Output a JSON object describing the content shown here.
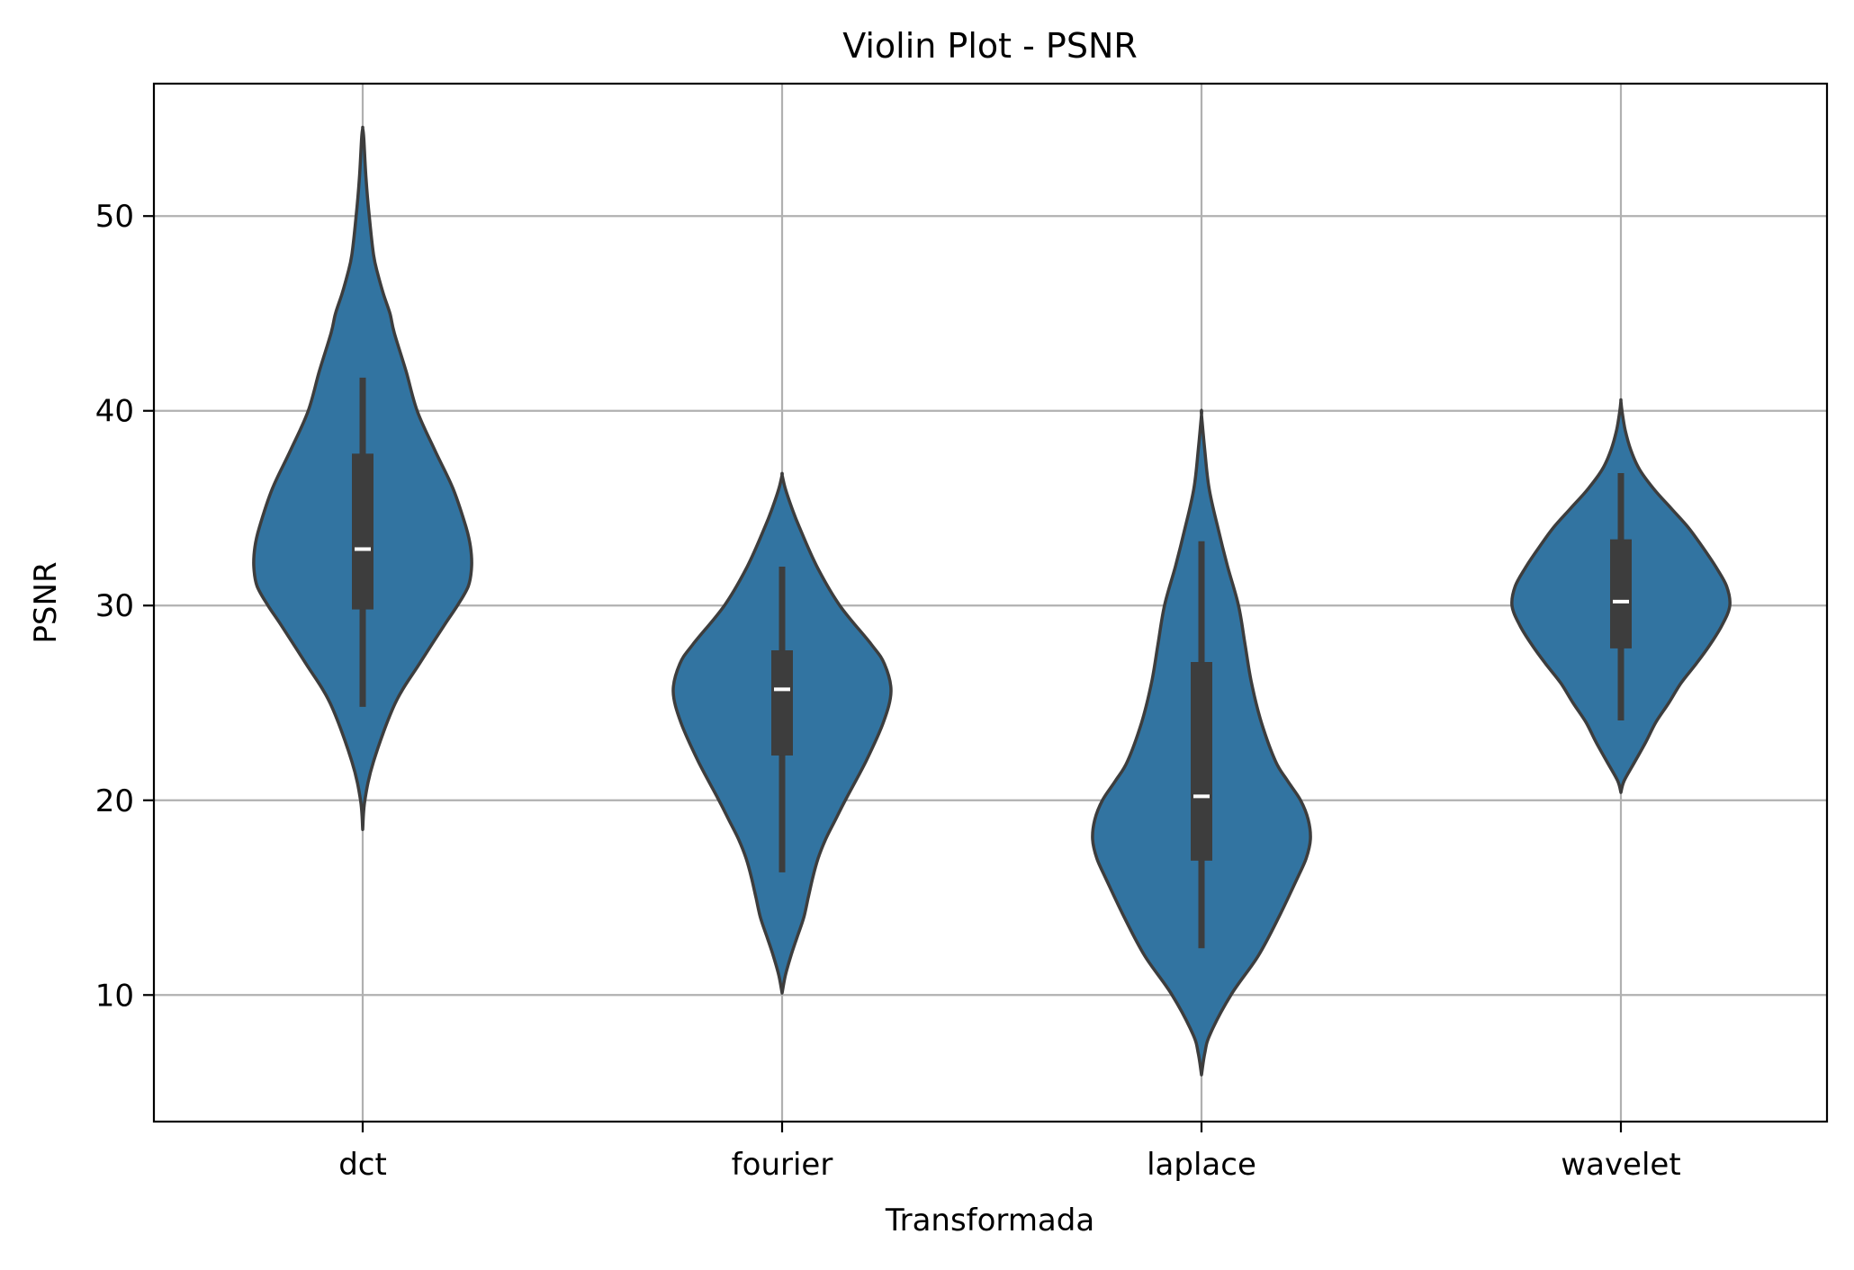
{
  "chart_data": {
    "type": "violin",
    "title": "Violin Plot - PSNR",
    "xlabel": "Transformada",
    "ylabel": "PSNR",
    "categories": [
      "dct",
      "fourier",
      "laplace",
      "wavelet"
    ],
    "yticks": [
      10,
      20,
      30,
      40,
      50
    ],
    "ylim": [
      3.5,
      56.8
    ],
    "grid": true,
    "colors": {
      "fill": "#3274a1",
      "edge": "#3d3d3d",
      "box": "#3d3d3d",
      "median": "#ffffff",
      "grid": "#b0b0b0"
    },
    "violins": [
      {
        "category": "dct",
        "median": 32.9,
        "q1": 29.8,
        "q3": 37.8,
        "whisker_low": 24.8,
        "whisker_high": 41.7,
        "profile": [
          [
            18.5,
            0
          ],
          [
            20,
            0.02
          ],
          [
            22,
            0.1
          ],
          [
            25,
            0.3
          ],
          [
            27,
            0.52
          ],
          [
            29,
            0.75
          ],
          [
            30,
            0.87
          ],
          [
            31,
            0.97
          ],
          [
            32,
            1.0
          ],
          [
            33,
            0.99
          ],
          [
            34,
            0.95
          ],
          [
            36,
            0.83
          ],
          [
            38,
            0.66
          ],
          [
            40,
            0.5
          ],
          [
            42,
            0.4
          ],
          [
            44,
            0.29
          ],
          [
            45,
            0.25
          ],
          [
            46,
            0.19
          ],
          [
            47,
            0.14
          ],
          [
            48,
            0.1
          ],
          [
            50,
            0.06
          ],
          [
            52,
            0.03
          ],
          [
            54,
            0.01
          ],
          [
            54.5,
            0
          ]
        ]
      },
      {
        "category": "fourier",
        "median": 25.7,
        "q1": 22.3,
        "q3": 27.7,
        "whisker_low": 16.3,
        "whisker_high": 32.0,
        "profile": [
          [
            10.1,
            0
          ],
          [
            11,
            0.03
          ],
          [
            12,
            0.08
          ],
          [
            13,
            0.14
          ],
          [
            14,
            0.2
          ],
          [
            15,
            0.24
          ],
          [
            16,
            0.28
          ],
          [
            17,
            0.33
          ],
          [
            18,
            0.4
          ],
          [
            19,
            0.49
          ],
          [
            20,
            0.58
          ],
          [
            22,
            0.77
          ],
          [
            24,
            0.93
          ],
          [
            25.6,
            1.0
          ],
          [
            27,
            0.94
          ],
          [
            28,
            0.82
          ],
          [
            30,
            0.53
          ],
          [
            32,
            0.32
          ],
          [
            34,
            0.16
          ],
          [
            35,
            0.09
          ],
          [
            36,
            0.03
          ],
          [
            36.7,
            0
          ]
        ]
      },
      {
        "category": "laplace",
        "median": 20.2,
        "q1": 16.9,
        "q3": 27.1,
        "whisker_low": 12.4,
        "whisker_high": 33.3,
        "profile": [
          [
            5.9,
            0
          ],
          [
            7,
            0.03
          ],
          [
            8,
            0.08
          ],
          [
            10,
            0.27
          ],
          [
            12,
            0.52
          ],
          [
            14,
            0.71
          ],
          [
            16,
            0.88
          ],
          [
            17,
            0.96
          ],
          [
            18,
            1.0
          ],
          [
            19,
            0.98
          ],
          [
            20,
            0.91
          ],
          [
            21,
            0.79
          ],
          [
            22,
            0.68
          ],
          [
            24,
            0.55
          ],
          [
            26,
            0.46
          ],
          [
            28,
            0.4
          ],
          [
            30,
            0.34
          ],
          [
            32,
            0.24
          ],
          [
            34,
            0.15
          ],
          [
            36,
            0.07
          ],
          [
            38,
            0.03
          ],
          [
            39.8,
            0
          ]
        ]
      },
      {
        "category": "wavelet",
        "median": 30.2,
        "q1": 27.8,
        "q3": 33.4,
        "whisker_low": 24.1,
        "whisker_high": 36.8,
        "profile": [
          [
            20.4,
            0
          ],
          [
            21,
            0.03
          ],
          [
            22,
            0.13
          ],
          [
            23,
            0.23
          ],
          [
            24,
            0.32
          ],
          [
            25,
            0.44
          ],
          [
            26,
            0.55
          ],
          [
            27,
            0.69
          ],
          [
            28,
            0.82
          ],
          [
            29,
            0.93
          ],
          [
            30,
            1.0
          ],
          [
            31,
            0.97
          ],
          [
            32,
            0.87
          ],
          [
            33,
            0.75
          ],
          [
            34,
            0.62
          ],
          [
            35,
            0.46
          ],
          [
            36,
            0.3
          ],
          [
            37,
            0.17
          ],
          [
            38,
            0.09
          ],
          [
            39,
            0.04
          ],
          [
            40,
            0.01
          ],
          [
            40.5,
            0
          ]
        ]
      }
    ]
  }
}
